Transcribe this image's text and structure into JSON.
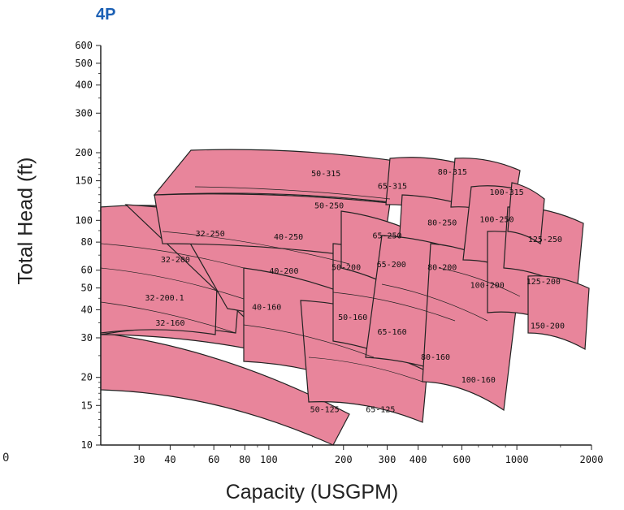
{
  "title": "4P",
  "colors": {
    "title": "#1a5fb4",
    "region_fill": "#e8859b",
    "region_stroke": "#222222",
    "axis": "#222222"
  },
  "axis_fragment": "0",
  "chart_data": {
    "type": "area",
    "xlabel": "Capacity (USGPM)",
    "ylabel": "Total Head (ft)",
    "xscale": "log",
    "yscale": "log",
    "xlim": [
      21,
      2000
    ],
    "ylim": [
      10,
      600
    ],
    "x_ticks": [
      30,
      40,
      60,
      80,
      100,
      200,
      300,
      400,
      600,
      1000,
      2000
    ],
    "x_tick_labels": [
      "30",
      "40",
      "60",
      "80",
      "100",
      "200",
      "300",
      "400",
      "600",
      "1000",
      "2000"
    ],
    "y_ticks": [
      10,
      15,
      20,
      30,
      40,
      50,
      60,
      80,
      100,
      150,
      200,
      300,
      400,
      500,
      600
    ],
    "y_tick_labels": [
      "10",
      "15",
      "20",
      "30",
      "40",
      "50",
      "60",
      "80",
      "100",
      "150",
      "200",
      "300",
      "400",
      "500",
      "600"
    ],
    "grid": false,
    "models": [
      {
        "label": "32-160",
        "label_x": 40,
        "label_y": 34
      },
      {
        "label": "32-200.1",
        "label_x": 38,
        "label_y": 44
      },
      {
        "label": "32-200",
        "label_x": 42,
        "label_y": 65
      },
      {
        "label": "32-250",
        "label_x": 58,
        "label_y": 85
      },
      {
        "label": "40-160",
        "label_x": 98,
        "label_y": 40
      },
      {
        "label": "40-200",
        "label_x": 115,
        "label_y": 58
      },
      {
        "label": "40-250",
        "label_x": 120,
        "label_y": 82
      },
      {
        "label": "50-125",
        "label_x": 168,
        "label_y": 14
      },
      {
        "label": "50-160",
        "label_x": 218,
        "label_y": 36
      },
      {
        "label": "50-200",
        "label_x": 205,
        "label_y": 60
      },
      {
        "label": "50-250",
        "label_x": 175,
        "label_y": 113
      },
      {
        "label": "50-315",
        "label_x": 170,
        "label_y": 157
      },
      {
        "label": "65-125",
        "label_x": 282,
        "label_y": 14
      },
      {
        "label": "65-160",
        "label_x": 314,
        "label_y": 31
      },
      {
        "label": "65-200",
        "label_x": 312,
        "label_y": 62
      },
      {
        "label": "65-250",
        "label_x": 300,
        "label_y": 83
      },
      {
        "label": "65-315",
        "label_x": 315,
        "label_y": 138
      },
      {
        "label": "80-160",
        "label_x": 470,
        "label_y": 24
      },
      {
        "label": "80-200",
        "label_x": 500,
        "label_y": 60
      },
      {
        "label": "80-250",
        "label_x": 500,
        "label_y": 95
      },
      {
        "label": "80-315",
        "label_x": 550,
        "label_y": 160
      },
      {
        "label": "100-160",
        "label_x": 700,
        "label_y": 19
      },
      {
        "label": "100-200",
        "label_x": 760,
        "label_y": 50
      },
      {
        "label": "100-250",
        "label_x": 830,
        "label_y": 98
      },
      {
        "label": "100-315",
        "label_x": 910,
        "label_y": 130
      },
      {
        "label": "125-200",
        "label_x": 1280,
        "label_y": 52
      },
      {
        "label": "125-250",
        "label_x": 1300,
        "label_y": 80
      },
      {
        "label": "150-200",
        "label_x": 1330,
        "label_y": 33
      }
    ]
  }
}
